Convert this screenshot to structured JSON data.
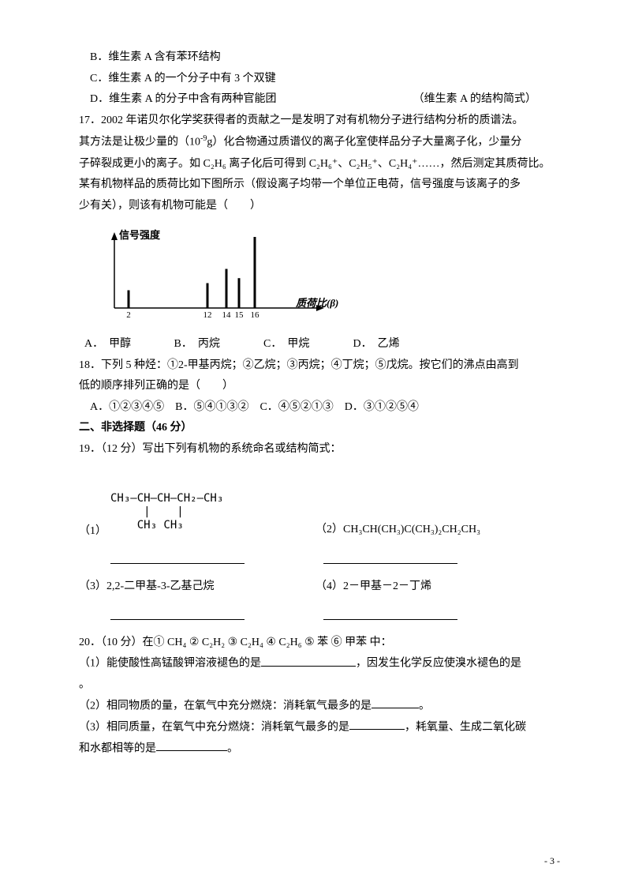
{
  "opt_b": "B．维生素 A 含有苯环结构",
  "opt_c": "C．维生素 A 的一个分子中有 3 个双键",
  "opt_d": "D．维生素 A 的分子中含有两种官能团",
  "opt_d_note": "（维生素 A 的结构简式）",
  "q17": {
    "p1": "17．2002 年诺贝尔化学奖获得者的贡献之一是发明了对有机物分子进行结构分析的质谱法。",
    "p2_a": "其方法是让极少量的（10",
    "p2_sup": "-9",
    "p2_b": "g）化合物通过质谱仪的离子化室使样品分子大量离子化，少量分",
    "p3": "子碎裂成更小的离子。如 C₂H₆ 离子化后可得到 C₂H₆⁺、C₂H₅⁺、C₂H₄⁺……，然后测定其质荷比。",
    "p4": "某有机物样品的质荷比如下图所示（假设离子均带一个单位正电荷，信号强度与该离子的多",
    "p5": "少有关），则该有机物可能是（　　）",
    "chart": {
      "y_label": "信号强度",
      "x_label": "质荷比(β)",
      "ticks": [
        "2",
        "12",
        "14",
        "15",
        "16"
      ],
      "heights": [
        0.25,
        0.35,
        0.55,
        0.42,
        1.0
      ],
      "axis_color": "#000000",
      "bar_color": "#000000"
    },
    "opts": {
      "a": "A．　甲醇",
      "b": "B．　丙烷",
      "c": "C．　甲烷",
      "d": "D．　乙烯"
    }
  },
  "q18": {
    "p1": "18．下列 5 种烃：①2-甲基丙烷；②乙烷；③丙烷；④丁烷；⑤戊烷。按它们的沸点由高到",
    "p2": "低的顺序排列正确的是（　　）",
    "opts": "　A．①②③④⑤　B．⑤④①③②　C．④⑤②①③　D．③①②⑤④"
  },
  "section2": "二、非选择题（46 分）",
  "q19": {
    "head": "19．（12 分）写出下列有机物的系统命名或结构简式：",
    "s1_label": "（1）",
    "s1_line1": "CH₃—CH—CH—CH₂—CH₃",
    "s1_line2": "     |    |",
    "s1_line3": "    CH₃ CH₃",
    "s2": "（2）CH₃CH(CH₃)C(CH₃)₂CH₂CH₃",
    "s3": "（3）2,2-二甲基-3-乙基己烷",
    "s4": "（4）2－甲基－2－丁烯"
  },
  "q20": {
    "head": "20．（10 分）在① CH₄ ② C₂H₂ ③ C₂H₄ ④ C₂H₆ ⑤ 苯 ⑥ 甲苯 中：",
    "s1_a": "（1）能使酸性高锰酸钾溶液褪色的是",
    "s1_b": "，因发生化学反应使溴水褪色的是",
    "s1_end": "。",
    "s2_a": "（2）相同物质的量，在氧气中充分燃烧：消耗氧气最多的是",
    "s2_end": "。",
    "s3_a": "（3）相同质量，在氧气中充分燃烧：消耗氧气最多的是",
    "s3_b": "，耗氧量、生成二氧化碳",
    "s3_c": "和水都相等的是",
    "s3_end": "。"
  },
  "footer": "- 3 -"
}
